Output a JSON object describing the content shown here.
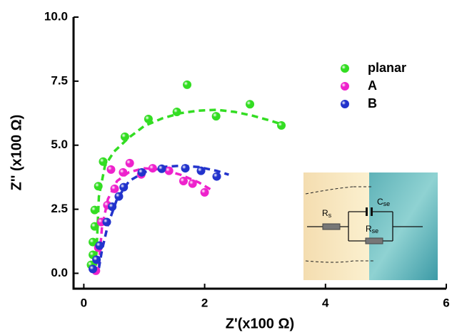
{
  "chart_data": {
    "type": "scatter",
    "xlabel": "Z'(x100 Ω)",
    "ylabel": "Z'' (x100 Ω)",
    "xlim": [
      -0.17,
      6
    ],
    "ylim": [
      -0.6,
      10
    ],
    "xticks": [
      0,
      2,
      4,
      6
    ],
    "yticks": [
      {
        "value": 0,
        "label": "0.0"
      },
      {
        "value": 2.5,
        "label": "2.5"
      },
      {
        "value": 5,
        "label": "5.0"
      },
      {
        "value": 7.5,
        "label": "7.5"
      },
      {
        "value": 10,
        "label": "10.0"
      }
    ],
    "legend": "upper right",
    "series": [
      {
        "name": "planar",
        "type": "scatter",
        "color": "#33dd22",
        "x": [
          0.12,
          0.15,
          0.15,
          0.18,
          0.18,
          0.24,
          0.32,
          0.68,
          1.07,
          1.54,
          1.71,
          2.19,
          2.75,
          3.27
        ],
        "values": [
          0.33,
          0.72,
          1.22,
          1.83,
          2.47,
          3.4,
          4.36,
          5.33,
          6.02,
          6.3,
          7.36,
          6.13,
          6.6,
          5.77
        ]
      },
      {
        "name": "A",
        "type": "scatter",
        "color": "#ee22cc",
        "x": [
          0.2,
          0.24,
          0.29,
          0.39,
          0.51,
          0.45,
          0.65,
          0.76,
          0.95,
          1.14,
          1.41,
          1.65,
          1.8,
          2.0
        ],
        "values": [
          0.1,
          1.0,
          2.0,
          2.66,
          3.3,
          4.05,
          3.94,
          4.3,
          3.86,
          4.1,
          4.0,
          3.6,
          3.5,
          3.16
        ]
      },
      {
        "name": "B",
        "type": "scatter",
        "color": "#2233cc",
        "x": [
          0.15,
          0.21,
          0.26,
          0.38,
          0.47,
          0.58,
          0.66,
          0.96,
          1.29,
          1.68,
          1.94,
          2.2
        ],
        "values": [
          0.17,
          0.53,
          1.08,
          2.0,
          2.6,
          3.0,
          3.36,
          3.94,
          4.08,
          4.1,
          4.0,
          3.78
        ]
      },
      {
        "type": "line",
        "color": "#33dd22",
        "x": [
          0.2,
          0.25,
          0.35,
          0.5,
          0.75,
          1.0,
          1.3,
          1.6,
          1.9,
          2.2,
          2.5,
          2.8,
          3.1,
          3.3
        ],
        "values": [
          0.3,
          3.0,
          4.2,
          4.75,
          5.3,
          5.75,
          6.05,
          6.25,
          6.35,
          6.38,
          6.3,
          6.15,
          5.95,
          5.8
        ]
      },
      {
        "type": "line",
        "color": "#ee22cc",
        "x": [
          0.25,
          0.3,
          0.4,
          0.55,
          0.75,
          1.0,
          1.3,
          1.6,
          1.9,
          2.15
        ],
        "values": [
          0.3,
          1.8,
          2.9,
          3.6,
          3.95,
          4.1,
          4.05,
          3.85,
          3.55,
          3.2
        ]
      },
      {
        "type": "line",
        "color": "#2233cc",
        "x": [
          0.25,
          0.3,
          0.4,
          0.55,
          0.75,
          1.0,
          1.3,
          1.6,
          1.9,
          2.2,
          2.4
        ],
        "values": [
          0.2,
          0.9,
          1.9,
          2.9,
          3.6,
          3.95,
          4.15,
          4.2,
          4.15,
          4.0,
          3.85
        ]
      }
    ],
    "inset": {
      "labels": [
        {
          "main": "R",
          "sub": "s"
        },
        {
          "main": "C",
          "sub": "se"
        },
        {
          "main": "R",
          "sub": "se"
        }
      ]
    }
  }
}
